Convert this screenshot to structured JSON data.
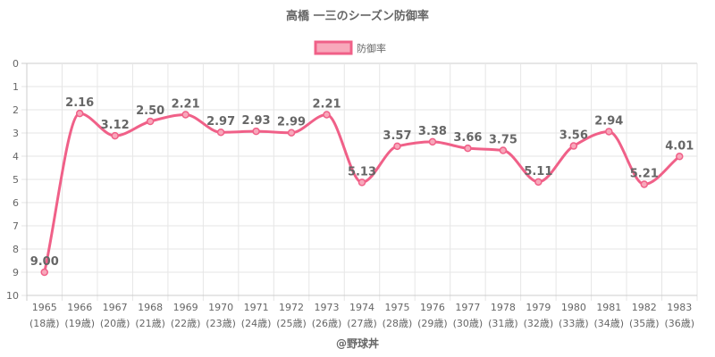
{
  "chart_data": {
    "type": "line",
    "title": "高橋 一三のシーズン防御率",
    "credit": "@野球丼",
    "series": [
      {
        "name": "防御率",
        "color": "#f06088",
        "values": [
          9.0,
          2.16,
          3.12,
          2.5,
          2.21,
          2.97,
          2.93,
          2.99,
          2.21,
          5.13,
          3.57,
          3.38,
          3.66,
          3.75,
          5.11,
          3.56,
          2.94,
          5.21,
          4.01
        ]
      }
    ],
    "categories": [
      "1965",
      "1966",
      "1967",
      "1968",
      "1969",
      "1970",
      "1971",
      "1972",
      "1973",
      "1974",
      "1975",
      "1976",
      "1977",
      "1978",
      "1979",
      "1980",
      "1981",
      "1982",
      "1983"
    ],
    "sublabels": [
      "(18歳)",
      "(19歳)",
      "(20歳)",
      "(21歳)",
      "(22歳)",
      "(23歳)",
      "(24歳)",
      "(25歳)",
      "(26歳)",
      "(27歳)",
      "(28歳)",
      "(29歳)",
      "(30歳)",
      "(31歳)",
      "(32歳)",
      "(33歳)",
      "(34歳)",
      "(35歳)",
      "(36歳)"
    ],
    "data_labels": [
      "9.00",
      "2.16",
      "3.12",
      "2.50",
      "2.21",
      "2.97",
      "2.93",
      "2.99",
      "2.21",
      "5.13",
      "3.57",
      "3.38",
      "3.66",
      "3.75",
      "5.11",
      "3.56",
      "2.94",
      "5.21",
      "4.01"
    ],
    "y_ticks": [
      "0",
      "1",
      "2",
      "3",
      "4",
      "5",
      "6",
      "7",
      "8",
      "9",
      "10"
    ],
    "ylim": [
      0,
      10
    ],
    "y_reversed": true,
    "grid": true,
    "legend": "top-center"
  }
}
